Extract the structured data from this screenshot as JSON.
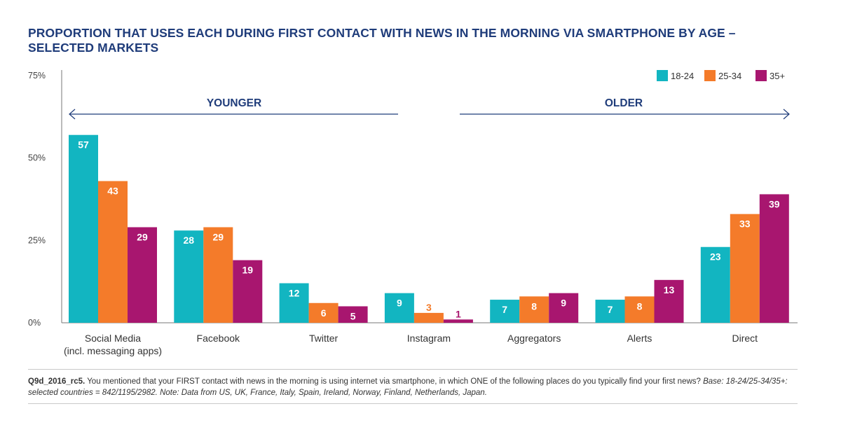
{
  "header": {
    "title_line1": "PROPORTION THAT USES EACH DURING FIRST CONTACT WITH NEWS IN THE MORNING VIA SMARTPHONE BY AGE –",
    "title_line2": "SELECTED MARKETS"
  },
  "chart_data": {
    "type": "bar",
    "title": "PROPORTION THAT USES EACH DURING FIRST CONTACT WITH NEWS IN THE MORNING VIA SMARTPHONE BY AGE – SELECTED MARKETS",
    "categories": [
      [
        "Social Media",
        "(incl. messaging apps)"
      ],
      [
        "Facebook"
      ],
      [
        "Twitter"
      ],
      [
        "Instagram"
      ],
      [
        "Aggregators"
      ],
      [
        "Alerts"
      ],
      [
        "Direct"
      ]
    ],
    "series": [
      {
        "name": "18-24",
        "color": "#12b5c1",
        "values": [
          57,
          28,
          12,
          9,
          7,
          7,
          23
        ]
      },
      {
        "name": "25-34",
        "color": "#f47b2a",
        "values": [
          43,
          29,
          6,
          3,
          8,
          8,
          33
        ]
      },
      {
        "name": "35+",
        "color": "#a8166f",
        "values": [
          29,
          19,
          5,
          1,
          9,
          13,
          39
        ]
      }
    ],
    "ylim": [
      0,
      75
    ],
    "yticks": [
      0,
      25,
      50,
      75
    ],
    "ytick_labels": [
      "0%",
      "25%",
      "50%",
      "75%"
    ],
    "grid": false,
    "legend_position": "top-right",
    "annotations": {
      "left": "YOUNGER",
      "right": "OLDER"
    },
    "colors": {
      "title": "#1f3c7a",
      "axis": "#555555",
      "arrow": "#1f3c7a"
    }
  },
  "footnote": {
    "code": "Q9d_2016_rc5.",
    "text": " You mentioned that your FIRST contact with news in the morning is using internet via smartphone, in which ONE of the following places do you typically find your first news? ",
    "base": "Base: 18-24/25-34/35+: selected countries = 842/1195/2982. Note: Data from US, UK, France, Italy, Spain, Ireland, Norway, Finland, Netherlands, Japan."
  }
}
